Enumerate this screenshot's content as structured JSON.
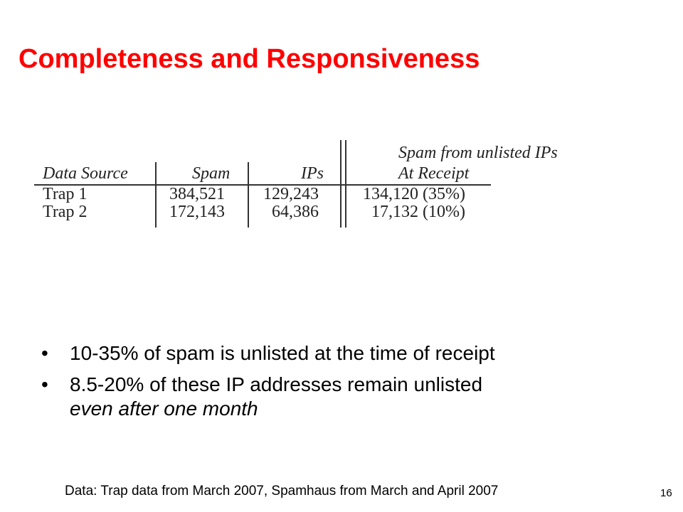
{
  "slide": {
    "title": "Completeness and Responsiveness",
    "page_number": "16"
  },
  "table": {
    "headers": {
      "data_source": "Data Source",
      "spam": "Spam",
      "ips": "IPs",
      "unlisted_top": "Spam from unlisted IPs",
      "unlisted_bottom": "At Receipt"
    },
    "rows": [
      {
        "source": "Trap 1",
        "spam": "384,521",
        "ips": "129,243",
        "unlisted": "134,120 (35%)"
      },
      {
        "source": "Trap 2",
        "spam": "172,143",
        "ips": "64,386",
        "unlisted": "17,132 (10%)"
      }
    ]
  },
  "bullets": [
    {
      "text": "10-35% of spam is unlisted at the time of receipt"
    },
    {
      "text": "8.5-20% of these IP addresses remain unlisted",
      "italic_text": "even after one month"
    }
  ],
  "bullet_symbol": "•",
  "footnote": "Data: Trap data from March 2007, Spamhaus from March and April 2007",
  "colors": {
    "title": "#ff0000",
    "text": "#000000"
  }
}
